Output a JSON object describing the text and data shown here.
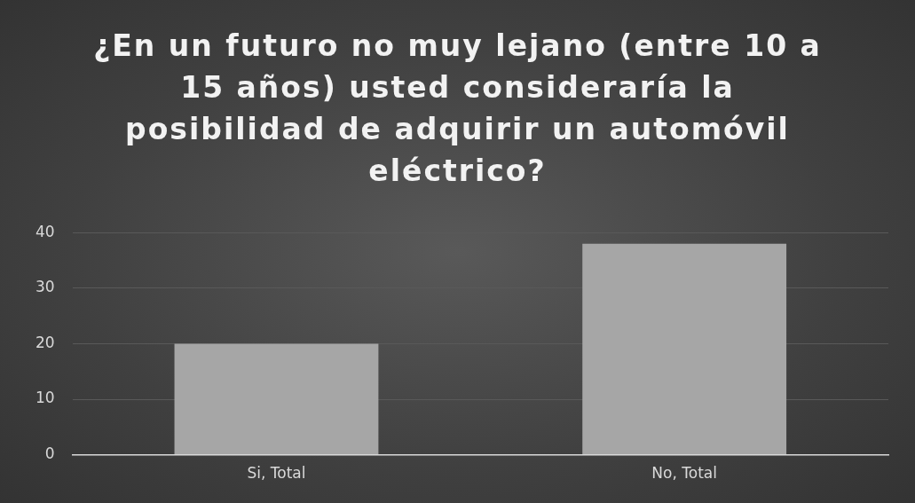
{
  "chart_data": {
    "type": "bar",
    "title": "¿En un futuro no muy lejano (entre 10 a 15 años) usted consideraría la posibilidad de adquirir un automóvil eléctrico?",
    "categories": [
      "Si, Total",
      "No, Total"
    ],
    "values": [
      20,
      38
    ],
    "color": "#a6a6a6",
    "ylim": [
      0,
      40
    ],
    "yticks": [
      0,
      10,
      20,
      30,
      40
    ],
    "grid": "y",
    "legend": false
  }
}
